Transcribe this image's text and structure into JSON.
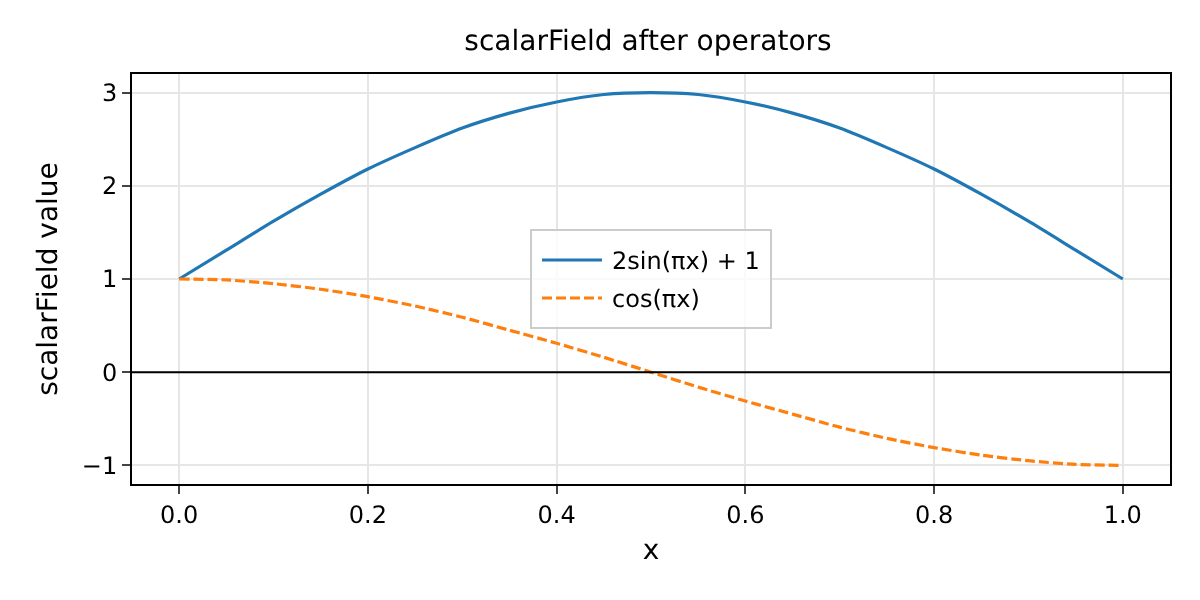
{
  "chart_data": {
    "type": "line",
    "title": "scalarField after operators",
    "xlabel": "x",
    "ylabel": "scalarField value",
    "x": [
      0,
      0.05,
      0.1,
      0.15,
      0.2,
      0.25,
      0.3,
      0.35,
      0.4,
      0.45,
      0.5,
      0.55,
      0.6,
      0.65,
      0.7,
      0.75,
      0.8,
      0.85,
      0.9,
      0.95,
      1
    ],
    "series": [
      {
        "name": "2sin(πx) + 1",
        "color": "#1f77b4",
        "line_style": "solid",
        "values": [
          1,
          1.31,
          1.62,
          1.91,
          2.18,
          2.41,
          2.62,
          2.78,
          2.9,
          2.98,
          3,
          2.98,
          2.9,
          2.78,
          2.62,
          2.41,
          2.18,
          1.91,
          1.62,
          1.31,
          1
        ]
      },
      {
        "name": "cos(πx)",
        "color": "#ff7f0e",
        "line_style": "dashed",
        "values": [
          1,
          0.99,
          0.95,
          0.89,
          0.81,
          0.71,
          0.59,
          0.45,
          0.31,
          0.16,
          0,
          -0.16,
          -0.31,
          -0.45,
          -0.59,
          -0.71,
          -0.81,
          -0.89,
          -0.95,
          -0.99,
          -1
        ]
      }
    ],
    "xlim": [
      -0.05,
      1.05
    ],
    "xticks": [
      {
        "value": 0,
        "label": "0.0"
      },
      {
        "value": 0.2,
        "label": "0.2"
      },
      {
        "value": 0.4,
        "label": "0.4"
      },
      {
        "value": 0.6,
        "label": "0.6"
      },
      {
        "value": 0.8,
        "label": "0.8"
      },
      {
        "value": 1,
        "label": "1.0"
      }
    ],
    "ylim": [
      -1.2,
      3.2
    ],
    "yticks": [
      {
        "value": -1,
        "label": "−1"
      },
      0,
      1,
      2,
      3
    ],
    "ref_lines": [
      {
        "axis": "y",
        "value": 0,
        "color": "#000000"
      }
    ],
    "grid": true,
    "legend": "center",
    "marker": "none"
  }
}
